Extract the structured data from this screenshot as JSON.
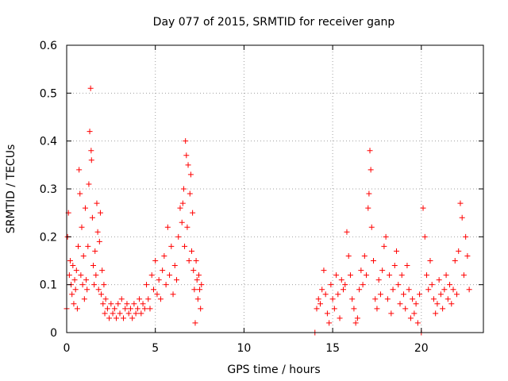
{
  "chart_data": {
    "type": "scatter",
    "title": "Day 077 of 2015, SRMTID for receiver ganp",
    "xlabel": "GPS time / hours",
    "ylabel": "SRMTID / TECUs",
    "xlim": [
      0,
      23.5
    ],
    "ylim": [
      0,
      0.6
    ],
    "xticks": [
      0,
      5,
      10,
      15,
      20
    ],
    "yticks": [
      0,
      0.1,
      0.2,
      0.3,
      0.4,
      0.5,
      0.6
    ],
    "xtick_labels": [
      "0",
      "5",
      "10",
      "15",
      "20"
    ],
    "ytick_labels": [
      "0",
      "0.1",
      "0.2",
      "0.3",
      "0.4",
      "0.5",
      "0.6"
    ],
    "grid": true,
    "marker": "+",
    "series": [
      {
        "name": "SRMTID",
        "color": "#ff0000",
        "points": [
          [
            0.0,
            0.05
          ],
          [
            0.05,
            0.2
          ],
          [
            0.1,
            0.25
          ],
          [
            0.15,
            0.12
          ],
          [
            0.2,
            0.15
          ],
          [
            0.25,
            0.1
          ],
          [
            0.3,
            0.08
          ],
          [
            0.35,
            0.14
          ],
          [
            0.4,
            0.06
          ],
          [
            0.45,
            0.11
          ],
          [
            0.5,
            0.09
          ],
          [
            0.55,
            0.13
          ],
          [
            0.6,
            0.05
          ],
          [
            0.65,
            0.18
          ],
          [
            0.7,
            0.34
          ],
          [
            0.75,
            0.29
          ],
          [
            0.8,
            0.12
          ],
          [
            0.85,
            0.22
          ],
          [
            0.9,
            0.1
          ],
          [
            0.95,
            0.16
          ],
          [
            1.0,
            0.07
          ],
          [
            1.05,
            0.26
          ],
          [
            1.1,
            0.11
          ],
          [
            1.15,
            0.09
          ],
          [
            1.2,
            0.18
          ],
          [
            1.25,
            0.31
          ],
          [
            1.3,
            0.42
          ],
          [
            1.35,
            0.51
          ],
          [
            1.38,
            0.38
          ],
          [
            1.4,
            0.36
          ],
          [
            1.45,
            0.24
          ],
          [
            1.5,
            0.14
          ],
          [
            1.55,
            0.1
          ],
          [
            1.6,
            0.17
          ],
          [
            1.65,
            0.12
          ],
          [
            1.7,
            0.27
          ],
          [
            1.75,
            0.21
          ],
          [
            1.8,
            0.09
          ],
          [
            1.85,
            0.19
          ],
          [
            1.9,
            0.25
          ],
          [
            1.95,
            0.08
          ],
          [
            2.0,
            0.13
          ],
          [
            2.05,
            0.06
          ],
          [
            2.1,
            0.1
          ],
          [
            2.15,
            0.04
          ],
          [
            2.2,
            0.07
          ],
          [
            2.3,
            0.05
          ],
          [
            2.4,
            0.03
          ],
          [
            2.5,
            0.06
          ],
          [
            2.6,
            0.04
          ],
          [
            2.7,
            0.05
          ],
          [
            2.8,
            0.03
          ],
          [
            2.9,
            0.06
          ],
          [
            3.0,
            0.04
          ],
          [
            3.1,
            0.07
          ],
          [
            3.2,
            0.03
          ],
          [
            3.3,
            0.05
          ],
          [
            3.4,
            0.06
          ],
          [
            3.5,
            0.04
          ],
          [
            3.6,
            0.05
          ],
          [
            3.7,
            0.03
          ],
          [
            3.8,
            0.06
          ],
          [
            3.9,
            0.04
          ],
          [
            4.0,
            0.05
          ],
          [
            4.1,
            0.07
          ],
          [
            4.2,
            0.04
          ],
          [
            4.3,
            0.06
          ],
          [
            4.4,
            0.05
          ],
          [
            4.5,
            0.1
          ],
          [
            4.6,
            0.07
          ],
          [
            4.7,
            0.05
          ],
          [
            4.8,
            0.12
          ],
          [
            4.9,
            0.09
          ],
          [
            5.0,
            0.15
          ],
          [
            5.1,
            0.08
          ],
          [
            5.2,
            0.11
          ],
          [
            5.3,
            0.07
          ],
          [
            5.4,
            0.13
          ],
          [
            5.5,
            0.16
          ],
          [
            5.6,
            0.1
          ],
          [
            5.7,
            0.22
          ],
          [
            5.8,
            0.12
          ],
          [
            5.9,
            0.18
          ],
          [
            6.0,
            0.08
          ],
          [
            6.1,
            0.14
          ],
          [
            6.2,
            0.11
          ],
          [
            6.3,
            0.2
          ],
          [
            6.4,
            0.26
          ],
          [
            6.5,
            0.23
          ],
          [
            6.55,
            0.27
          ],
          [
            6.6,
            0.3
          ],
          [
            6.65,
            0.18
          ],
          [
            6.7,
            0.4
          ],
          [
            6.75,
            0.37
          ],
          [
            6.8,
            0.22
          ],
          [
            6.85,
            0.35
          ],
          [
            6.9,
            0.15
          ],
          [
            6.95,
            0.29
          ],
          [
            7.0,
            0.33
          ],
          [
            7.05,
            0.17
          ],
          [
            7.1,
            0.25
          ],
          [
            7.15,
            0.13
          ],
          [
            7.2,
            0.09
          ],
          [
            7.25,
            0.02
          ],
          [
            7.3,
            0.15
          ],
          [
            7.35,
            0.11
          ],
          [
            7.4,
            0.07
          ],
          [
            7.45,
            0.12
          ],
          [
            7.5,
            0.09
          ],
          [
            7.55,
            0.05
          ],
          [
            7.6,
            0.1
          ],
          [
            14.0,
            0.0
          ],
          [
            14.1,
            0.05
          ],
          [
            14.2,
            0.07
          ],
          [
            14.3,
            0.06
          ],
          [
            14.4,
            0.09
          ],
          [
            14.5,
            0.13
          ],
          [
            14.6,
            0.08
          ],
          [
            14.7,
            0.04
          ],
          [
            14.8,
            0.02
          ],
          [
            14.9,
            0.1
          ],
          [
            15.0,
            0.07
          ],
          [
            15.1,
            0.05
          ],
          [
            15.2,
            0.12
          ],
          [
            15.3,
            0.08
          ],
          [
            15.4,
            0.03
          ],
          [
            15.5,
            0.11
          ],
          [
            15.6,
            0.09
          ],
          [
            15.7,
            0.1
          ],
          [
            15.8,
            0.21
          ],
          [
            15.9,
            0.16
          ],
          [
            16.0,
            0.12
          ],
          [
            16.1,
            0.07
          ],
          [
            16.2,
            0.05
          ],
          [
            16.3,
            0.02
          ],
          [
            16.4,
            0.03
          ],
          [
            16.5,
            0.09
          ],
          [
            16.6,
            0.13
          ],
          [
            16.7,
            0.1
          ],
          [
            16.8,
            0.16
          ],
          [
            16.9,
            0.12
          ],
          [
            17.0,
            0.26
          ],
          [
            17.05,
            0.29
          ],
          [
            17.1,
            0.38
          ],
          [
            17.15,
            0.34
          ],
          [
            17.2,
            0.22
          ],
          [
            17.3,
            0.15
          ],
          [
            17.4,
            0.07
          ],
          [
            17.5,
            0.05
          ],
          [
            17.6,
            0.11
          ],
          [
            17.7,
            0.08
          ],
          [
            17.8,
            0.13
          ],
          [
            17.9,
            0.18
          ],
          [
            18.0,
            0.2
          ],
          [
            18.1,
            0.07
          ],
          [
            18.2,
            0.12
          ],
          [
            18.3,
            0.04
          ],
          [
            18.4,
            0.09
          ],
          [
            18.5,
            0.14
          ],
          [
            18.6,
            0.17
          ],
          [
            18.7,
            0.1
          ],
          [
            18.8,
            0.06
          ],
          [
            18.9,
            0.12
          ],
          [
            19.0,
            0.08
          ],
          [
            19.1,
            0.05
          ],
          [
            19.2,
            0.14
          ],
          [
            19.3,
            0.09
          ],
          [
            19.4,
            0.03
          ],
          [
            19.5,
            0.07
          ],
          [
            19.6,
            0.04
          ],
          [
            19.7,
            0.06
          ],
          [
            19.8,
            0.02
          ],
          [
            19.9,
            0.08
          ],
          [
            20.0,
            0.0
          ],
          [
            20.1,
            0.26
          ],
          [
            20.2,
            0.2
          ],
          [
            20.3,
            0.12
          ],
          [
            20.4,
            0.09
          ],
          [
            20.5,
            0.15
          ],
          [
            20.6,
            0.1
          ],
          [
            20.7,
            0.07
          ],
          [
            20.8,
            0.04
          ],
          [
            20.9,
            0.06
          ],
          [
            21.0,
            0.11
          ],
          [
            21.1,
            0.08
          ],
          [
            21.2,
            0.05
          ],
          [
            21.3,
            0.09
          ],
          [
            21.4,
            0.12
          ],
          [
            21.5,
            0.07
          ],
          [
            21.6,
            0.1
          ],
          [
            21.7,
            0.06
          ],
          [
            21.8,
            0.09
          ],
          [
            21.9,
            0.15
          ],
          [
            22.0,
            0.08
          ],
          [
            22.1,
            0.17
          ],
          [
            22.2,
            0.27
          ],
          [
            22.3,
            0.24
          ],
          [
            22.4,
            0.12
          ],
          [
            22.5,
            0.2
          ],
          [
            22.6,
            0.16
          ],
          [
            22.7,
            0.09
          ]
        ]
      }
    ]
  }
}
